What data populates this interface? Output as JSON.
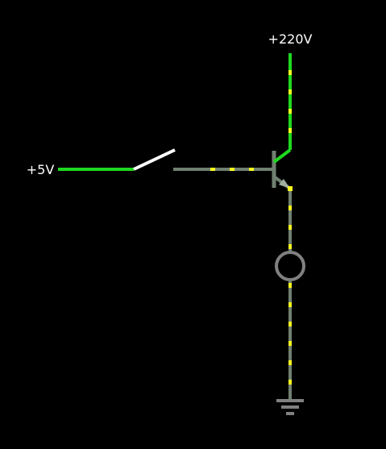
{
  "labels": {
    "supply_high": "+220V",
    "supply_low": "+5V"
  },
  "colors": {
    "background": "#000000",
    "energized_wire": "#1ed91e",
    "idle_wire": "#708070",
    "current_dots": "#ffff1e",
    "switch": "#ffffff",
    "lamp": "#808080",
    "ground": "#808080",
    "text": "#ffffff"
  },
  "components": {
    "switch_state": "open",
    "transistor_type": "npn",
    "lamp_state": "off"
  }
}
